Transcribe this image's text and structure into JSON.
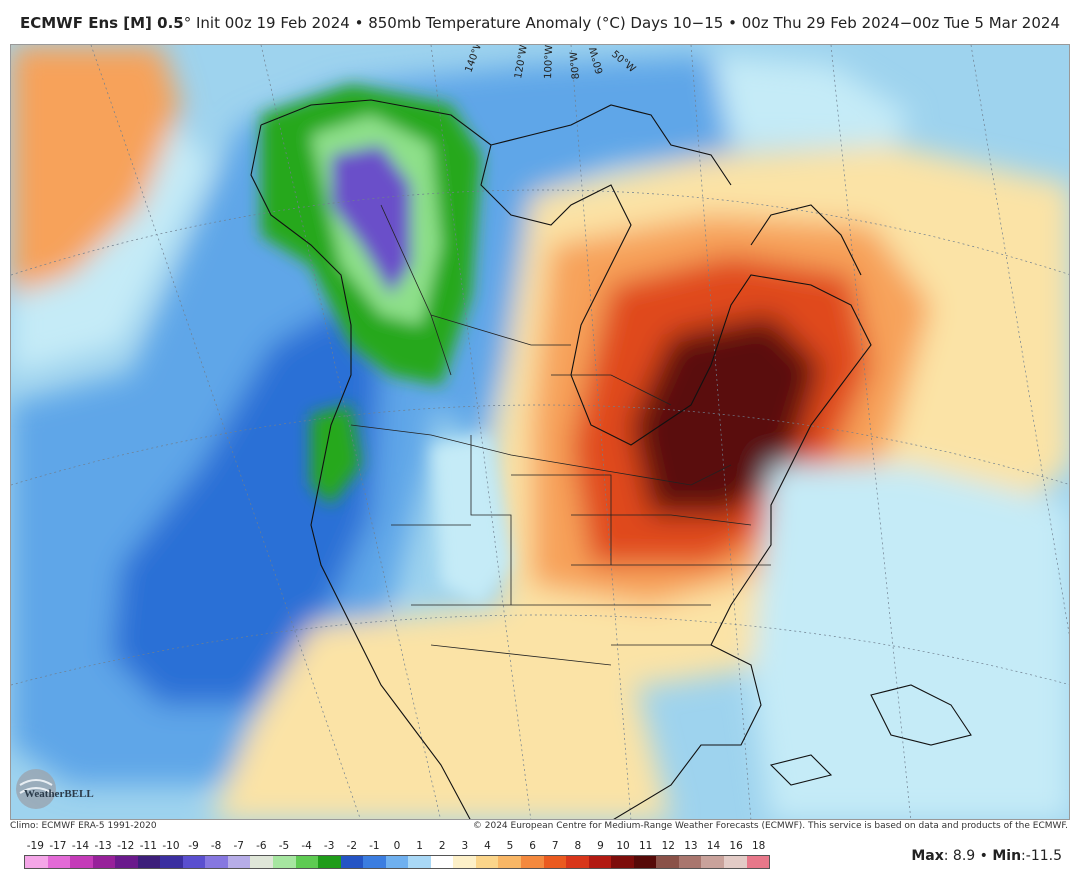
{
  "header": {
    "brand": "ECMWF Ens [M] 0.5",
    "degree": "°",
    "init": " Init 00z 19 Feb 2024 • 850mb Temperature Anomaly (°C)",
    "right": "Days 10−15 • 00z Thu 29 Feb 2024−00z Tue 5 Mar 2024"
  },
  "map": {
    "lon_labels": [
      "140°W",
      "120°W",
      "100°W",
      "80°W",
      "60°W",
      "50°W"
    ],
    "colors": {
      "ocean_base": "#9ed3ee",
      "warm_light": "#fbe3a6",
      "warm_mid": "#f7a25a",
      "warm_strong": "#e04a1a",
      "warm_peak": "#5a0f08",
      "cool_light": "#c5ebf7",
      "cool_mid": "#5fa6e8",
      "cool_strong": "#2a6fd6",
      "green_a": "#27a81c",
      "green_b": "#8ee08a",
      "purple": "#6b4fc9"
    }
  },
  "logo": {
    "text": "WeatherBELL"
  },
  "footer": {
    "climo": "Climo: ECMWF ERA-5 1991-2020",
    "copyright": "© 2024 European Centre for Medium-Range Weather Forecasts (ECMWF). This service is based on data and products of the ECMWF."
  },
  "colorbar": {
    "labels": [
      "-19",
      "-17",
      "-14",
      "-13",
      "-12",
      "-11",
      "-10",
      "-9",
      "-8",
      "-7",
      "-6",
      "-5",
      "-4",
      "-3",
      "-2",
      "-1",
      "0",
      "1",
      "2",
      "3",
      "4",
      "5",
      "6",
      "7",
      "8",
      "9",
      "10",
      "11",
      "12",
      "13",
      "14",
      "16",
      "18"
    ],
    "colors": [
      "#f5a6e8",
      "#e36ad6",
      "#c43bb8",
      "#97219a",
      "#6a1a8c",
      "#3d1e7a",
      "#3b2fa0",
      "#5a4fcf",
      "#8677e0",
      "#b7ade8",
      "#dfe6d8",
      "#a6e6a0",
      "#5ecb52",
      "#1f9c1a",
      "#2454c4",
      "#3b7de0",
      "#6fb0ef",
      "#a9d8f6",
      "#ffffff",
      "#fdf0c8",
      "#fbd58a",
      "#f8b665",
      "#f4893e",
      "#ea5a1f",
      "#d8361a",
      "#b21a12",
      "#7d0d0b",
      "#560a08",
      "#8a5148",
      "#a9766e",
      "#c9a29b",
      "#e3cbc6",
      "#e8788a"
    ]
  },
  "stats": {
    "max_label": "Max",
    "max_value": "8.9",
    "sep": " • ",
    "min_label": "Min",
    "min_value": "-11.5"
  }
}
